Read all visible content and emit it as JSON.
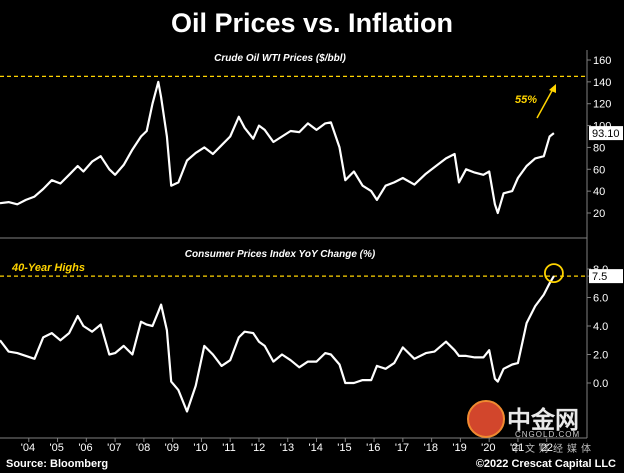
{
  "title": "Oil Prices vs. Inflation",
  "source": "Source: Bloomberg",
  "credit": "©2022 Crescat Capital LLC",
  "watermark": {
    "cn": "中金网",
    "site": "CNGOLD.COM",
    "sub": "中文财经媒体"
  },
  "colors": {
    "background": "#000000",
    "line": "#ffffff",
    "highlight": "#ffd400",
    "divider": "#808080"
  },
  "chart_data": [
    {
      "type": "line",
      "title": "Crude Oil WTI Prices ($/bbl)",
      "ylim": [
        10,
        160
      ],
      "yticks": [
        20,
        40,
        60,
        80,
        100,
        120,
        140,
        160
      ],
      "last_value_label": "93.10",
      "reference_line": 145,
      "annotation": "55%",
      "grid": false,
      "x": [
        2003.0,
        2003.3,
        2003.6,
        2003.9,
        2004.2,
        2004.5,
        2004.8,
        2005.1,
        2005.4,
        2005.7,
        2005.9,
        2006.2,
        2006.5,
        2006.8,
        2007.0,
        2007.3,
        2007.6,
        2007.9,
        2008.1,
        2008.3,
        2008.5,
        2008.6,
        2008.8,
        2008.95,
        2009.2,
        2009.5,
        2009.8,
        2010.1,
        2010.4,
        2010.7,
        2011.0,
        2011.3,
        2011.5,
        2011.8,
        2012.0,
        2012.2,
        2012.5,
        2012.8,
        2013.1,
        2013.4,
        2013.7,
        2014.0,
        2014.3,
        2014.5,
        2014.8,
        2015.0,
        2015.3,
        2015.6,
        2015.9,
        2016.1,
        2016.4,
        2016.7,
        2017.0,
        2017.4,
        2017.8,
        2018.1,
        2018.5,
        2018.8,
        2018.95,
        2019.2,
        2019.5,
        2019.8,
        2020.0,
        2020.2,
        2020.3,
        2020.5,
        2020.8,
        2021.0,
        2021.3,
        2021.6,
        2021.9,
        2022.1,
        2022.25
      ],
      "values": [
        29,
        30,
        28,
        32,
        35,
        42,
        50,
        47,
        55,
        63,
        58,
        67,
        72,
        60,
        55,
        64,
        78,
        90,
        95,
        120,
        140,
        126,
        90,
        45,
        48,
        68,
        75,
        80,
        74,
        82,
        90,
        108,
        98,
        88,
        100,
        96,
        85,
        90,
        95,
        94,
        102,
        96,
        102,
        103,
        80,
        50,
        58,
        45,
        40,
        32,
        45,
        48,
        52,
        46,
        56,
        62,
        70,
        74,
        48,
        60,
        57,
        55,
        58,
        28,
        20,
        38,
        40,
        52,
        63,
        70,
        72,
        90,
        93.1
      ]
    },
    {
      "type": "line",
      "title": "Consumer Prices Index YoY Change (%)",
      "ylim": [
        -2.5,
        9
      ],
      "yticks": [
        0.0,
        2.0,
        4.0,
        6.0,
        7.5,
        8.0
      ],
      "last_value_label": "7.5",
      "reference_line": 7.5,
      "annotation": "40-Year Highs",
      "grid": false,
      "x": [
        2003.0,
        2003.3,
        2003.6,
        2003.9,
        2004.2,
        2004.5,
        2004.8,
        2005.1,
        2005.4,
        2005.7,
        2005.9,
        2006.2,
        2006.5,
        2006.8,
        2007.0,
        2007.3,
        2007.6,
        2007.9,
        2008.1,
        2008.3,
        2008.5,
        2008.6,
        2008.8,
        2008.95,
        2009.2,
        2009.5,
        2009.8,
        2010.1,
        2010.4,
        2010.7,
        2011.0,
        2011.3,
        2011.5,
        2011.8,
        2012.0,
        2012.2,
        2012.5,
        2012.8,
        2013.1,
        2013.4,
        2013.7,
        2014.0,
        2014.3,
        2014.5,
        2014.8,
        2015.0,
        2015.3,
        2015.6,
        2015.9,
        2016.1,
        2016.4,
        2016.7,
        2017.0,
        2017.4,
        2017.8,
        2018.1,
        2018.5,
        2018.8,
        2018.95,
        2019.2,
        2019.5,
        2019.8,
        2020.0,
        2020.2,
        2020.3,
        2020.5,
        2020.8,
        2021.0,
        2021.3,
        2021.6,
        2021.9,
        2022.1,
        2022.25
      ],
      "values": [
        3.0,
        2.2,
        2.1,
        1.9,
        1.7,
        3.2,
        3.5,
        3.0,
        3.5,
        4.7,
        4.0,
        3.6,
        4.1,
        2.0,
        2.1,
        2.6,
        2.0,
        4.3,
        4.1,
        4.0,
        5.0,
        5.5,
        3.7,
        0.1,
        -0.5,
        -2.0,
        -0.2,
        2.6,
        2.0,
        1.2,
        1.6,
        3.2,
        3.6,
        3.5,
        2.9,
        2.6,
        1.5,
        2.0,
        1.6,
        1.1,
        1.5,
        1.5,
        2.1,
        2.0,
        1.3,
        0.0,
        0.0,
        0.2,
        0.2,
        1.2,
        1.0,
        1.4,
        2.5,
        1.7,
        2.1,
        2.2,
        2.9,
        2.3,
        1.9,
        1.9,
        1.8,
        1.8,
        2.3,
        0.3,
        0.1,
        1.0,
        1.3,
        1.4,
        4.2,
        5.4,
        6.2,
        7.0,
        7.5
      ]
    }
  ],
  "x_tick_labels": [
    "'04",
    "'05",
    "'06",
    "'07",
    "'08",
    "'09",
    "'10",
    "'11",
    "'12",
    "'13",
    "'14",
    "'15",
    "'16",
    "'17",
    "'18",
    "'19",
    "'20",
    "'21",
    "'22"
  ]
}
